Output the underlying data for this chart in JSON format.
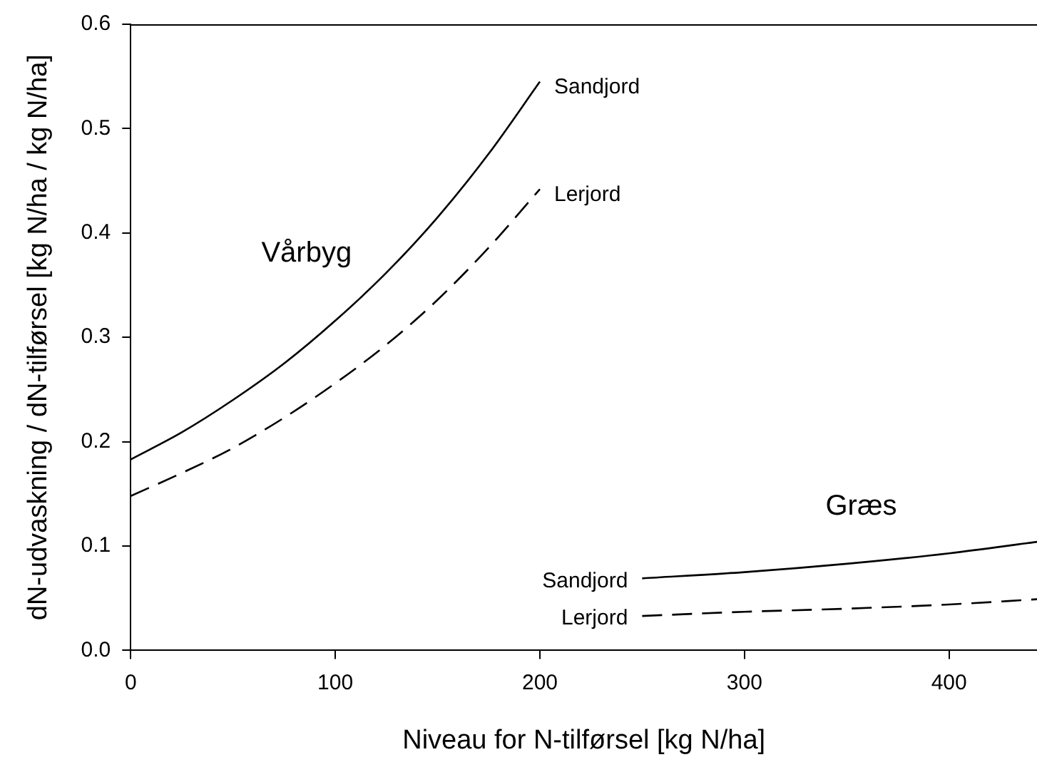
{
  "chart_data": {
    "type": "line",
    "xlabel": "Niveau for N-tilførsel [kg N/ha]",
    "ylabel": "dN-udvaskning / dN-tilførsel [kg N/ha / kg N/ha]",
    "xlim": [
      0,
      443
    ],
    "xticks": [
      0,
      100,
      200,
      300,
      400
    ],
    "ylim": [
      0,
      0.6
    ],
    "yticks": [
      {
        "value": 0,
        "label": "0.0"
      },
      0.1,
      0.2,
      0.3,
      0.4,
      0.5,
      0.6
    ],
    "grid": false,
    "legend": false,
    "marker": "none",
    "series": [
      {
        "name": "Sandjord",
        "color": "#000000",
        "line_style": "solid",
        "x": [
          0,
          25,
          50,
          75,
          100,
          125,
          150,
          175,
          200
        ],
        "values": [
          0.183,
          0.209,
          0.24,
          0.275,
          0.316,
          0.362,
          0.415,
          0.476,
          0.545
        ]
      },
      {
        "name": "Lerjord",
        "color": "#000000",
        "line_style": "dashed",
        "x": [
          0,
          25,
          50,
          75,
          100,
          125,
          150,
          175,
          200
        ],
        "values": [
          0.148,
          0.17,
          0.194,
          0.223,
          0.256,
          0.293,
          0.336,
          0.386,
          0.442
        ]
      },
      {
        "name": "Sandjord",
        "color": "#000000",
        "line_style": "solid",
        "x": [
          250,
          300,
          350,
          400,
          443
        ],
        "values": [
          0.069,
          0.075,
          0.083,
          0.093,
          0.104
        ]
      },
      {
        "name": "Lerjord",
        "color": "#000000",
        "line_style": "dashed",
        "x": [
          250,
          300,
          350,
          400,
          443
        ],
        "values": [
          0.033,
          0.037,
          0.04,
          0.044,
          0.049
        ]
      }
    ],
    "annotations": [
      "Vårbyg",
      "Græs"
    ]
  }
}
